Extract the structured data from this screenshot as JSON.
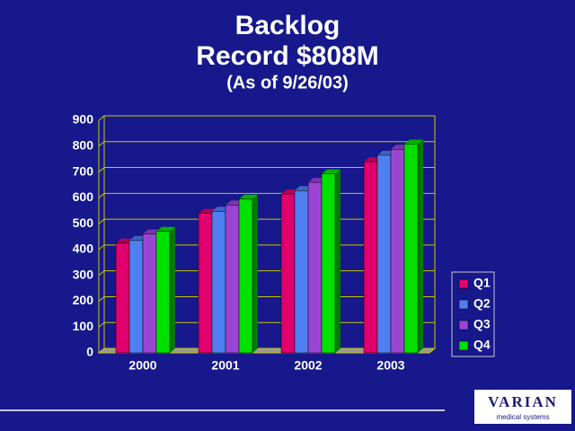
{
  "chart_data": {
    "type": "bar3d",
    "title": "Backlog",
    "subtitle": "Record $808M",
    "note": "(As of 9/26/03)",
    "categories": [
      "2000",
      "2001",
      "2002",
      "2003"
    ],
    "series": [
      {
        "name": "Q1",
        "color": "#e0006e",
        "values": [
          425,
          540,
          615,
          740
        ]
      },
      {
        "name": "Q2",
        "color": "#4f7ff0",
        "values": [
          435,
          548,
          628,
          765
        ]
      },
      {
        "name": "Q3",
        "color": "#9b44d4",
        "values": [
          460,
          572,
          660,
          788
        ]
      },
      {
        "name": "Q4",
        "color": "#00e000",
        "values": [
          470,
          595,
          693,
          808
        ]
      }
    ],
    "ylim": [
      0,
      900
    ],
    "yticks": [
      0,
      100,
      200,
      300,
      400,
      500,
      600,
      700,
      800,
      900
    ],
    "grid": true,
    "legend": "right"
  },
  "logo": {
    "name": "VARIAN",
    "tagline": "medical systems"
  }
}
